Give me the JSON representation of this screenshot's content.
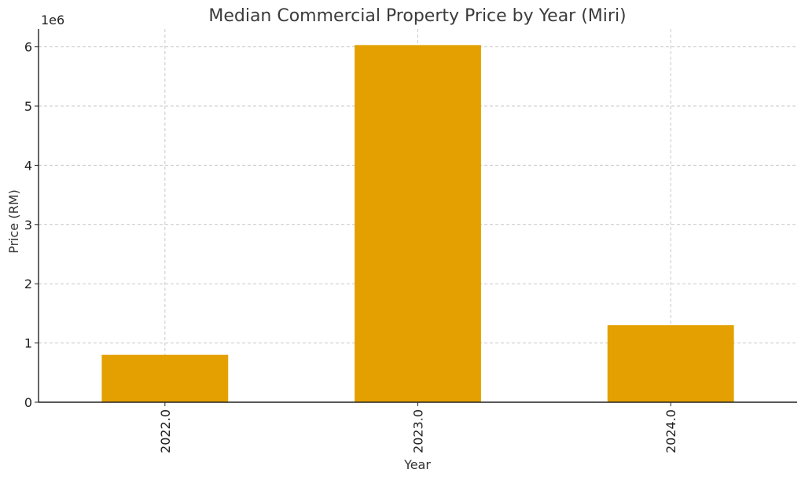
{
  "chart_data": {
    "type": "bar",
    "title": "Median Commercial Property Price by Year (Miri)",
    "xlabel": "Year",
    "ylabel": "Price (RM)",
    "categories": [
      "2022.0",
      "2023.0",
      "2024.0"
    ],
    "values": [
      800000,
      6030000,
      1300000
    ],
    "ylim": [
      0,
      6300000
    ],
    "yticks": [
      0,
      1,
      2,
      3,
      4,
      5,
      6
    ],
    "y_multiplier_label": "1e6",
    "grid": true,
    "bar_color": "#E3A000"
  }
}
